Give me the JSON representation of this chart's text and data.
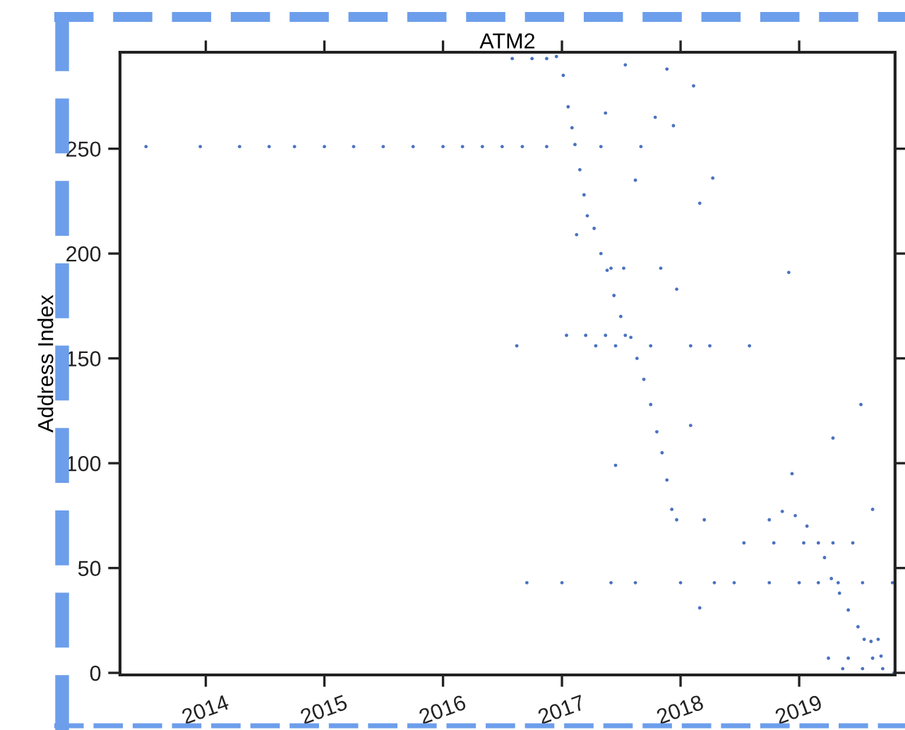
{
  "chart_data": {
    "type": "scatter",
    "title": "ATM2",
    "ylabel": "Address Index",
    "marker": "circle",
    "xlim": [
      "2013-04-12",
      "2019-10-23"
    ],
    "ylim": [
      -1,
      296
    ],
    "xticks": [
      {
        "value": "2014-01-01",
        "label": "2014"
      },
      {
        "value": "2015-01-01",
        "label": "2015"
      },
      {
        "value": "2016-01-01",
        "label": "2016"
      },
      {
        "value": "2017-01-01",
        "label": "2017"
      },
      {
        "value": "2018-01-01",
        "label": "2018"
      },
      {
        "value": "2019-01-01",
        "label": "2019"
      }
    ],
    "yticks": [
      0,
      50,
      100,
      150,
      200,
      250
    ],
    "series": [
      {
        "color": "#4a72c0",
        "x": [
          "2016-12-15",
          "2017-01-05",
          "2017-01-20",
          "2017-02-01",
          "2017-02-10",
          "2017-02-25",
          "2017-03-10",
          "2017-03-20",
          "2017-04-10",
          "2017-05-01",
          "2017-05-20",
          "2017-06-10",
          "2017-07-01",
          "2017-08-01",
          "2017-08-20",
          "2017-09-10",
          "2017-10-01",
          "2017-10-20",
          "2017-11-05",
          "2017-11-20",
          "2017-12-05",
          "2018-11-10",
          "2018-12-20",
          "2019-01-25",
          "2019-03-01",
          "2019-03-20",
          "2019-04-10",
          "2019-05-05",
          "2019-06-01",
          "2019-07-01",
          "2019-08-10",
          "2019-09-10",
          "2019-10-20",
          "2013-07-01",
          "2013-12-15",
          "2014-04-15",
          "2014-07-15",
          "2014-10-01",
          "2015-01-01",
          "2015-04-01",
          "2015-07-01",
          "2015-10-01",
          "2016-01-01",
          "2016-03-01",
          "2016-05-01",
          "2016-07-01",
          "2016-09-01",
          "2016-11-15",
          "2017-05-01",
          "2017-09-01",
          "2016-08-01",
          "2016-10-01",
          "2016-11-15",
          "2017-01-15",
          "2017-03-15",
          "2017-05-15",
          "2017-07-15",
          "2016-08-15",
          "2017-04-15",
          "2017-06-15",
          "2017-10-01",
          "2018-02-01",
          "2018-04-01",
          "2018-08-01",
          "2017-06-01",
          "2017-07-10",
          "2017-11-01",
          "2016-09-15",
          "2017-01-01",
          "2017-06-01",
          "2017-08-15",
          "2018-01-01",
          "2018-04-15",
          "2018-06-15",
          "2018-10-01",
          "2019-01-01",
          "2019-03-01",
          "2019-05-01",
          "2019-07-15",
          "2019-10-15",
          "2018-07-15",
          "2018-10-15",
          "2019-01-15",
          "2019-04-15",
          "2019-06-15",
          "2017-12-20",
          "2018-03-15",
          "2019-07-20",
          "2019-09-01",
          "2019-04-01",
          "2019-06-01",
          "2019-08-15",
          "2019-05-15",
          "2019-07-15",
          "2019-09-15",
          "2017-05-15",
          "2017-07-15",
          "2017-11-20",
          "2018-02-10",
          "2017-10-15",
          "2017-12-10",
          "2018-04-10",
          "2018-03-01",
          "2017-08-15",
          "2017-02-15",
          "2017-06-15",
          "2018-02-01",
          "2018-11-30",
          "2018-12-10",
          "2019-07-10",
          "2019-04-15",
          "2018-03-01",
          "2018-10-01",
          "2019-08-15",
          "2017-12-20"
        ],
        "values": [
          294,
          285,
          270,
          260,
          252,
          240,
          228,
          218,
          212,
          200,
          192,
          180,
          170,
          160,
          150,
          140,
          128,
          115,
          105,
          92,
          78,
          77,
          75,
          70,
          62,
          55,
          45,
          38,
          30,
          22,
          15,
          8,
          0,
          251,
          251,
          251,
          251,
          251,
          251,
          251,
          251,
          251,
          251,
          251,
          251,
          251,
          251,
          251,
          251,
          251,
          293,
          293,
          293,
          161,
          161,
          161,
          161,
          156,
          156,
          156,
          156,
          156,
          156,
          156,
          193,
          193,
          193,
          43,
          43,
          43,
          43,
          43,
          43,
          43,
          43,
          43,
          43,
          43,
          43,
          43,
          62,
          62,
          62,
          62,
          62,
          73,
          73,
          16,
          16,
          7,
          7,
          7,
          2,
          2,
          2,
          267,
          290,
          288,
          280,
          265,
          261,
          236,
          224,
          235,
          209,
          99,
          118,
          191,
          95,
          128,
          112,
          31,
          73,
          78,
          183
        ]
      }
    ]
  }
}
